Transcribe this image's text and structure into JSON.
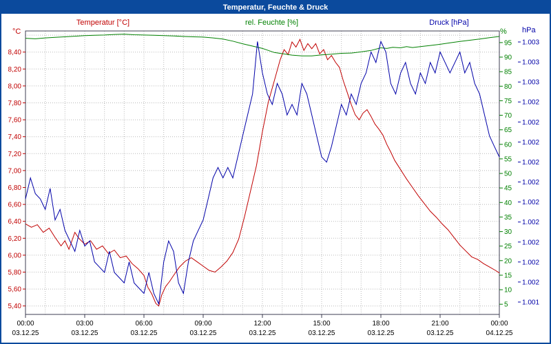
{
  "window": {
    "title": "Temperatur, Feuchte & Druck"
  },
  "colors": {
    "titlebar_bg": "#0b4a9d",
    "window_border": "#0b4a9d",
    "grid": "#b8b8b8",
    "plot_border": "#3c3c50",
    "axis_tick": "#3c3c50",
    "x_label": "#000000",
    "temperature": "#c00000",
    "humidity": "#008000",
    "pressure": "#0000a8"
  },
  "chart_data": {
    "type": "line",
    "title": "Temperatur, Feuchte & Druck",
    "x_axis": {
      "range": [
        0,
        24
      ],
      "ticks": [
        {
          "time": "00:00",
          "date": "03.12.25",
          "hour": 0
        },
        {
          "time": "03:00",
          "date": "03.12.25",
          "hour": 3
        },
        {
          "time": "06:00",
          "date": "03.12.25",
          "hour": 6
        },
        {
          "time": "09:00",
          "date": "03.12.25",
          "hour": 9
        },
        {
          "time": "12:00",
          "date": "03.12.25",
          "hour": 12
        },
        {
          "time": "15:00",
          "date": "03.12.25",
          "hour": 15
        },
        {
          "time": "18:00",
          "date": "03.12.25",
          "hour": 18
        },
        {
          "time": "21:00",
          "date": "03.12.25",
          "hour": 21
        },
        {
          "time": "00:00",
          "date": "04.12.25",
          "hour": 24
        }
      ]
    },
    "y_axes": {
      "temperature": {
        "label": "Temperatur [°C]",
        "unit": "°C",
        "color": "#c00000",
        "range": [
          5.3,
          8.65
        ],
        "ticks": [
          {
            "label": "8,40",
            "value": 8.4
          },
          {
            "label": "8,20",
            "value": 8.2
          },
          {
            "label": "8,00",
            "value": 8.0
          },
          {
            "label": "7,80",
            "value": 7.8
          },
          {
            "label": "7,60",
            "value": 7.6
          },
          {
            "label": "7,40",
            "value": 7.4
          },
          {
            "label": "7,20",
            "value": 7.2
          },
          {
            "label": "7,00",
            "value": 7.0
          },
          {
            "label": "6,80",
            "value": 6.8
          },
          {
            "label": "6,60",
            "value": 6.6
          },
          {
            "label": "6,40",
            "value": 6.4
          },
          {
            "label": "6,20",
            "value": 6.2
          },
          {
            "label": "6,00",
            "value": 6.0
          },
          {
            "label": "5,80",
            "value": 5.8
          },
          {
            "label": "5,60",
            "value": 5.6
          },
          {
            "label": "5,40",
            "value": 5.4
          }
        ]
      },
      "humidity": {
        "label": "rel. Feuchte [%]",
        "unit": "%",
        "color": "#008000",
        "range": [
          1.5,
          99
        ],
        "tick_values": [
          95,
          90,
          85,
          80,
          75,
          70,
          65,
          60,
          55,
          50,
          45,
          40,
          35,
          30,
          25,
          20,
          15,
          10,
          5
        ]
      },
      "pressure": {
        "label": "Druck [hPa]",
        "unit": "hPa",
        "color": "#0000a8",
        "range": [
          1000.7,
          1003.4
        ],
        "tick_labels": [
          "1.003",
          "1.003",
          "1.003",
          "1.002",
          "1.002",
          "1.002",
          "1.002",
          "1.002",
          "1.002",
          "1.002",
          "1.002",
          "1.002",
          "1.002",
          "1.001"
        ]
      }
    },
    "series": [
      {
        "name": "Temperatur [°C]",
        "axis": "temperature",
        "color": "#c00000",
        "points": [
          [
            0,
            6.37
          ],
          [
            0.3,
            6.33
          ],
          [
            0.6,
            6.36
          ],
          [
            0.9,
            6.27
          ],
          [
            1.2,
            6.32
          ],
          [
            1.5,
            6.21
          ],
          [
            1.8,
            6.11
          ],
          [
            2,
            6.17
          ],
          [
            2.2,
            6.07
          ],
          [
            2.5,
            6.27
          ],
          [
            2.7,
            6.2
          ],
          [
            3,
            6.13
          ],
          [
            3.3,
            6.17
          ],
          [
            3.6,
            6.07
          ],
          [
            3.9,
            6.11
          ],
          [
            4.2,
            6.02
          ],
          [
            4.5,
            6.06
          ],
          [
            4.8,
            5.97
          ],
          [
            5.1,
            5.99
          ],
          [
            5.4,
            5.9
          ],
          [
            5.7,
            5.84
          ],
          [
            6,
            5.76
          ],
          [
            6.2,
            5.62
          ],
          [
            6.4,
            5.54
          ],
          [
            6.6,
            5.43
          ],
          [
            6.75,
            5.4
          ],
          [
            6.9,
            5.53
          ],
          [
            7.1,
            5.63
          ],
          [
            7.3,
            5.69
          ],
          [
            7.5,
            5.76
          ],
          [
            7.8,
            5.86
          ],
          [
            8.1,
            5.93
          ],
          [
            8.4,
            5.97
          ],
          [
            8.7,
            5.92
          ],
          [
            9,
            5.87
          ],
          [
            9.3,
            5.82
          ],
          [
            9.6,
            5.8
          ],
          [
            9.9,
            5.86
          ],
          [
            10.2,
            5.93
          ],
          [
            10.5,
            6.03
          ],
          [
            10.8,
            6.19
          ],
          [
            11.1,
            6.46
          ],
          [
            11.4,
            6.76
          ],
          [
            11.7,
            7.06
          ],
          [
            12,
            7.46
          ],
          [
            12.3,
            7.81
          ],
          [
            12.6,
            8.06
          ],
          [
            12.9,
            8.31
          ],
          [
            13.1,
            8.43
          ],
          [
            13.3,
            8.37
          ],
          [
            13.5,
            8.52
          ],
          [
            13.7,
            8.46
          ],
          [
            13.9,
            8.55
          ],
          [
            14.1,
            8.42
          ],
          [
            14.3,
            8.5
          ],
          [
            14.5,
            8.44
          ],
          [
            14.7,
            8.5
          ],
          [
            14.9,
            8.38
          ],
          [
            15.1,
            8.43
          ],
          [
            15.3,
            8.31
          ],
          [
            15.5,
            8.36
          ],
          [
            15.7,
            8.28
          ],
          [
            15.9,
            8.22
          ],
          [
            16.1,
            8.06
          ],
          [
            16.3,
            7.92
          ],
          [
            16.5,
            7.78
          ],
          [
            16.7,
            7.66
          ],
          [
            16.9,
            7.6
          ],
          [
            17.1,
            7.68
          ],
          [
            17.3,
            7.72
          ],
          [
            17.5,
            7.64
          ],
          [
            17.7,
            7.55
          ],
          [
            17.9,
            7.49
          ],
          [
            18.1,
            7.42
          ],
          [
            18.3,
            7.31
          ],
          [
            18.5,
            7.22
          ],
          [
            18.7,
            7.12
          ],
          [
            19,
            7.01
          ],
          [
            19.3,
            6.9
          ],
          [
            19.6,
            6.8
          ],
          [
            19.9,
            6.7
          ],
          [
            20.2,
            6.61
          ],
          [
            20.5,
            6.52
          ],
          [
            20.8,
            6.45
          ],
          [
            21.1,
            6.37
          ],
          [
            21.4,
            6.3
          ],
          [
            21.7,
            6.21
          ],
          [
            22,
            6.12
          ],
          [
            22.3,
            6.05
          ],
          [
            22.6,
            5.98
          ],
          [
            22.9,
            5.95
          ],
          [
            23.2,
            5.9
          ],
          [
            23.5,
            5.86
          ],
          [
            23.8,
            5.82
          ],
          [
            24,
            5.79
          ]
        ]
      },
      {
        "name": "rel. Feuchte [%]",
        "axis": "humidity",
        "color": "#008000",
        "points": [
          [
            0,
            96.5
          ],
          [
            0.5,
            96.3
          ],
          [
            1,
            96.6
          ],
          [
            1.5,
            96.8
          ],
          [
            2,
            97
          ],
          [
            2.5,
            97.2
          ],
          [
            3,
            97.4
          ],
          [
            3.5,
            97.5
          ],
          [
            4,
            97.6
          ],
          [
            4.5,
            97.8
          ],
          [
            5,
            97.9
          ],
          [
            5.5,
            97.7
          ],
          [
            6,
            97.6
          ],
          [
            6.5,
            97.5
          ],
          [
            7,
            97.4
          ],
          [
            7.5,
            97.3
          ],
          [
            8,
            97.1
          ],
          [
            8.5,
            97
          ],
          [
            9,
            96.9
          ],
          [
            9.5,
            96.6
          ],
          [
            10,
            96.2
          ],
          [
            10.5,
            95.5
          ],
          [
            11,
            94.6
          ],
          [
            11.5,
            93.8
          ],
          [
            12,
            93
          ],
          [
            12.3,
            92.3
          ],
          [
            12.6,
            91.6
          ],
          [
            13,
            91.2
          ],
          [
            13.5,
            90.7
          ],
          [
            14,
            90.4
          ],
          [
            14.5,
            90.4
          ],
          [
            15,
            90.8
          ],
          [
            15.5,
            91
          ],
          [
            16,
            91.3
          ],
          [
            16.5,
            91.4
          ],
          [
            17,
            91.8
          ],
          [
            17.5,
            92.3
          ],
          [
            18,
            93.2
          ],
          [
            18.3,
            93
          ],
          [
            18.6,
            93.4
          ],
          [
            19,
            93.2
          ],
          [
            19.3,
            93.6
          ],
          [
            19.6,
            93.3
          ],
          [
            20,
            93.6
          ],
          [
            20.5,
            94
          ],
          [
            21,
            94.4
          ],
          [
            21.5,
            94.9
          ],
          [
            22,
            95.4
          ],
          [
            22.5,
            95.8
          ],
          [
            23,
            96.2
          ],
          [
            23.5,
            96.7
          ],
          [
            24,
            97.1
          ]
        ]
      },
      {
        "name": "Druck [hPa]",
        "axis": "pressure",
        "color": "#0000a8",
        "points": [
          [
            0,
            1001.8
          ],
          [
            0.25,
            1002
          ],
          [
            0.5,
            1001.85
          ],
          [
            0.75,
            1001.8
          ],
          [
            1,
            1001.7
          ],
          [
            1.25,
            1001.9
          ],
          [
            1.5,
            1001.6
          ],
          [
            1.75,
            1001.7
          ],
          [
            2,
            1001.5
          ],
          [
            2.25,
            1001.4
          ],
          [
            2.5,
            1001.3
          ],
          [
            2.75,
            1001.5
          ],
          [
            3,
            1001.35
          ],
          [
            3.25,
            1001.4
          ],
          [
            3.5,
            1001.2
          ],
          [
            3.75,
            1001.15
          ],
          [
            4,
            1001.1
          ],
          [
            4.25,
            1001.3
          ],
          [
            4.5,
            1001.1
          ],
          [
            4.75,
            1001.05
          ],
          [
            5,
            1001
          ],
          [
            5.25,
            1001.2
          ],
          [
            5.5,
            1001
          ],
          [
            5.75,
            1000.95
          ],
          [
            6,
            1000.9
          ],
          [
            6.25,
            1001.1
          ],
          [
            6.5,
            1000.9
          ],
          [
            6.75,
            1000.8
          ],
          [
            7,
            1001.2
          ],
          [
            7.25,
            1001.4
          ],
          [
            7.5,
            1001.3
          ],
          [
            7.75,
            1001
          ],
          [
            8,
            1000.9
          ],
          [
            8.25,
            1001.2
          ],
          [
            8.5,
            1001.4
          ],
          [
            8.75,
            1001.5
          ],
          [
            9,
            1001.6
          ],
          [
            9.25,
            1001.8
          ],
          [
            9.5,
            1002
          ],
          [
            9.75,
            1002.1
          ],
          [
            10,
            1002
          ],
          [
            10.25,
            1002.1
          ],
          [
            10.5,
            1002
          ],
          [
            10.75,
            1002.2
          ],
          [
            11,
            1002.4
          ],
          [
            11.25,
            1002.6
          ],
          [
            11.5,
            1002.8
          ],
          [
            11.75,
            1003.3
          ],
          [
            12,
            1003
          ],
          [
            12.25,
            1002.8
          ],
          [
            12.5,
            1002.7
          ],
          [
            12.75,
            1002.9
          ],
          [
            13,
            1002.8
          ],
          [
            13.25,
            1002.6
          ],
          [
            13.5,
            1002.7
          ],
          [
            13.75,
            1002.6
          ],
          [
            14,
            1002.9
          ],
          [
            14.25,
            1002.8
          ],
          [
            14.5,
            1002.6
          ],
          [
            14.75,
            1002.4
          ],
          [
            15,
            1002.2
          ],
          [
            15.25,
            1002.15
          ],
          [
            15.5,
            1002.3
          ],
          [
            15.75,
            1002.5
          ],
          [
            16,
            1002.7
          ],
          [
            16.25,
            1002.6
          ],
          [
            16.5,
            1002.8
          ],
          [
            16.75,
            1002.7
          ],
          [
            17,
            1002.9
          ],
          [
            17.25,
            1003
          ],
          [
            17.5,
            1003.2
          ],
          [
            17.75,
            1003.1
          ],
          [
            18,
            1003.3
          ],
          [
            18.25,
            1003.2
          ],
          [
            18.5,
            1002.9
          ],
          [
            18.75,
            1002.8
          ],
          [
            19,
            1003
          ],
          [
            19.25,
            1003.1
          ],
          [
            19.5,
            1002.9
          ],
          [
            19.75,
            1002.8
          ],
          [
            20,
            1003
          ],
          [
            20.25,
            1002.9
          ],
          [
            20.5,
            1003.1
          ],
          [
            20.75,
            1003
          ],
          [
            21,
            1003.2
          ],
          [
            21.25,
            1003.1
          ],
          [
            21.5,
            1003
          ],
          [
            21.75,
            1003.1
          ],
          [
            22,
            1003.2
          ],
          [
            22.25,
            1003
          ],
          [
            22.5,
            1003.1
          ],
          [
            22.75,
            1002.9
          ],
          [
            23,
            1002.8
          ],
          [
            23.25,
            1002.6
          ],
          [
            23.5,
            1002.4
          ],
          [
            23.75,
            1002.3
          ],
          [
            24,
            1002.2
          ]
        ]
      }
    ]
  }
}
